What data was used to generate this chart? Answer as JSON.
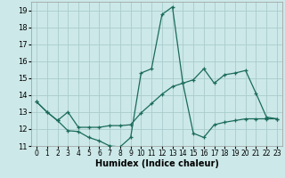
{
  "xlabel": "Humidex (Indice chaleur)",
  "bg_color": "#cce8e8",
  "line_color": "#1a6b5a",
  "grid_color": "#aacccc",
  "xlim": [
    -0.5,
    23.5
  ],
  "ylim": [
    11,
    19.5
  ],
  "yticks": [
    11,
    12,
    13,
    14,
    15,
    16,
    17,
    18,
    19
  ],
  "xticks": [
    0,
    1,
    2,
    3,
    4,
    5,
    6,
    7,
    8,
    9,
    10,
    11,
    12,
    13,
    14,
    15,
    16,
    17,
    18,
    19,
    20,
    21,
    22,
    23
  ],
  "line1_x": [
    0,
    1,
    2,
    3,
    4,
    5,
    6,
    7,
    8,
    9,
    10,
    11,
    12,
    13,
    14,
    15,
    16,
    17,
    18,
    19,
    20,
    21,
    22,
    23
  ],
  "line1_y": [
    13.6,
    13.0,
    12.5,
    11.9,
    11.85,
    11.5,
    11.3,
    11.0,
    10.95,
    11.5,
    15.3,
    15.55,
    18.75,
    19.2,
    14.7,
    14.9,
    15.55,
    14.7,
    15.2,
    15.3,
    15.45,
    14.1,
    12.7,
    12.6
  ],
  "line2_x": [
    0,
    1,
    2,
    3,
    4,
    5,
    6,
    7,
    8,
    9,
    10,
    11,
    12,
    13,
    14,
    15,
    16,
    17,
    18,
    19,
    20,
    21,
    22,
    23
  ],
  "line2_y": [
    13.6,
    13.0,
    12.5,
    13.0,
    12.1,
    12.1,
    12.1,
    12.2,
    12.2,
    12.25,
    12.95,
    13.5,
    14.05,
    14.5,
    14.7,
    11.75,
    11.5,
    12.25,
    12.4,
    12.5,
    12.6,
    12.6,
    12.6,
    12.6
  ],
  "xlabel_fontsize": 7,
  "tick_fontsize": 5.5,
  "ytick_fontsize": 6
}
